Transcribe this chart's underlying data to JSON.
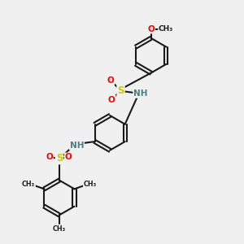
{
  "background_color": "#f0f0f0",
  "bond_color": "#1a1a1a",
  "S_color": "#cccc00",
  "O_color": "#ff0000",
  "N_color": "#4a8080",
  "figsize": [
    3.0,
    3.0
  ],
  "dpi": 100,
  "xlim": [
    0,
    10
  ],
  "ylim": [
    0,
    10
  ]
}
